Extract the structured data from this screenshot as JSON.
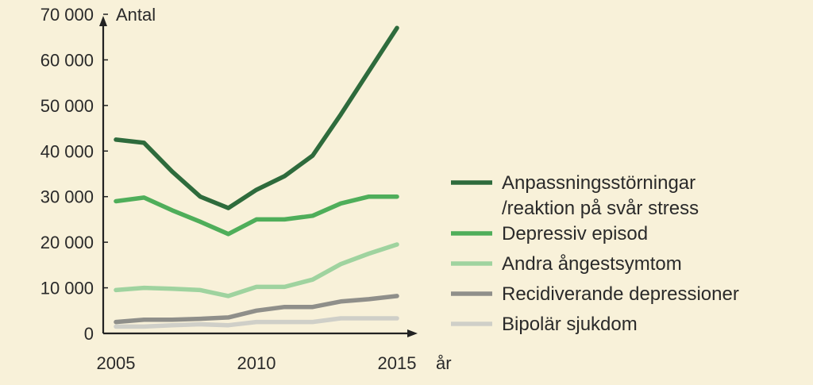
{
  "chart_data": {
    "type": "line",
    "ylabel": "Antal",
    "xlabel": "år",
    "ylim": [
      0,
      70000
    ],
    "xlim": [
      2005,
      2015
    ],
    "y_ticks": [
      0,
      10000,
      20000,
      30000,
      40000,
      50000,
      60000,
      70000
    ],
    "y_tick_labels": [
      "0",
      "10 000",
      "20 000",
      "30 000",
      "40 000",
      "50 000",
      "60 000",
      "70 000"
    ],
    "x_ticks": [
      2005,
      2010,
      2015
    ],
    "x_tick_labels": [
      "2005",
      "2010",
      "2015"
    ],
    "grid": false,
    "legend_position": "right",
    "series": [
      {
        "name": "Anpassningsstörningar\n/reaktion på svår stress",
        "color": "#2e6b3c",
        "x": [
          2005,
          2006,
          2007,
          2008,
          2009,
          2010,
          2011,
          2012,
          2013,
          2014,
          2015
        ],
        "values": [
          42500,
          41800,
          35500,
          30000,
          27500,
          31500,
          34500,
          39000,
          48000,
          57500,
          67000
        ]
      },
      {
        "name": "Depressiv episod",
        "color": "#4fae5a",
        "x": [
          2005,
          2006,
          2007,
          2008,
          2009,
          2010,
          2011,
          2012,
          2013,
          2014,
          2015
        ],
        "values": [
          29000,
          29800,
          27000,
          24500,
          21800,
          25000,
          25000,
          25800,
          28500,
          30000,
          30000
        ]
      },
      {
        "name": "Andra ångestsymtom",
        "color": "#9fd39f",
        "x": [
          2005,
          2006,
          2007,
          2008,
          2009,
          2010,
          2011,
          2012,
          2013,
          2014,
          2015
        ],
        "values": [
          9500,
          10000,
          9800,
          9500,
          8200,
          10200,
          10200,
          11800,
          15200,
          17500,
          19500
        ]
      },
      {
        "name": "Recidiverande depressioner",
        "color": "#8f8f8a",
        "x": [
          2005,
          2006,
          2007,
          2008,
          2009,
          2010,
          2011,
          2012,
          2013,
          2014,
          2015
        ],
        "values": [
          2500,
          3000,
          3000,
          3200,
          3500,
          5000,
          5800,
          5800,
          7000,
          7500,
          8200
        ]
      },
      {
        "name": "Bipolär sjukdom",
        "color": "#cfcfc8",
        "x": [
          2005,
          2006,
          2007,
          2008,
          2009,
          2010,
          2011,
          2012,
          2013,
          2014,
          2015
        ],
        "values": [
          1500,
          1500,
          1800,
          2000,
          1800,
          2500,
          2500,
          2500,
          3300,
          3300,
          3300
        ]
      }
    ]
  }
}
